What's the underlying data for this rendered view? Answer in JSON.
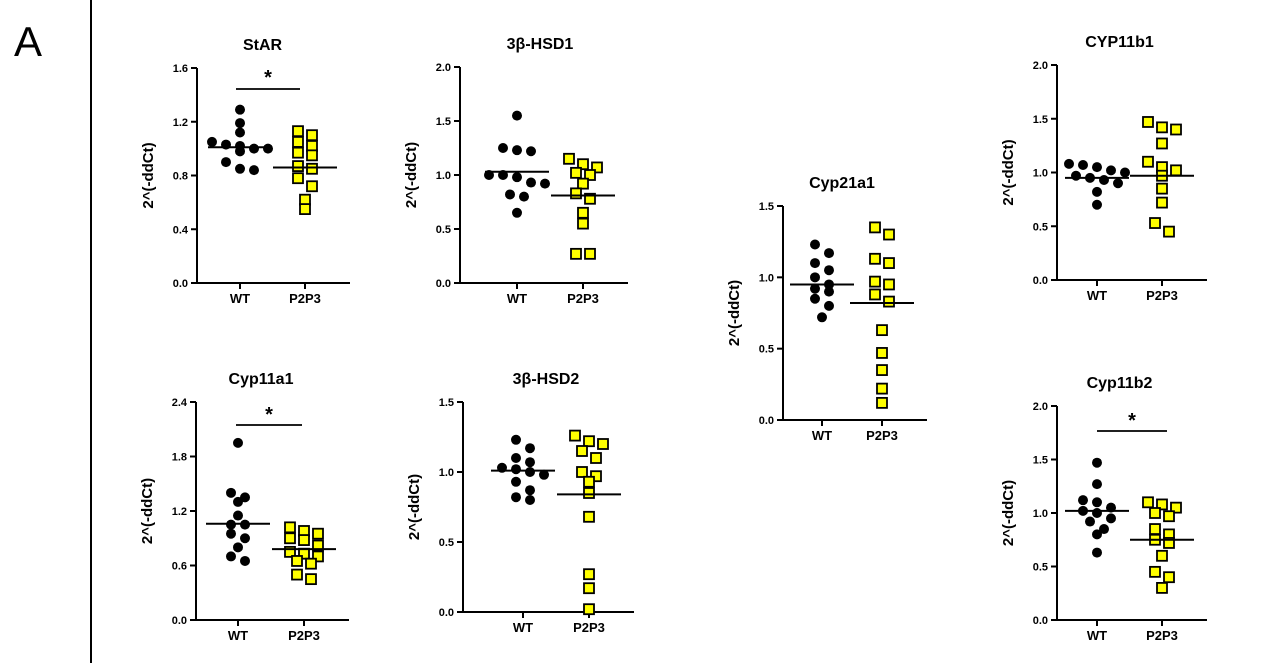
{
  "panel_label": "A",
  "colors": {
    "wt": "#000000",
    "p2p3": "#ffff00",
    "p2p3_edge": "#000000"
  },
  "chart_data": [
    {
      "type": "scatter",
      "title": "StAR",
      "ylabel": "2^(-ddCt)",
      "ylim": [
        0,
        1.6
      ],
      "yticks": [
        "0.0",
        "0.4",
        "0.8",
        "1.2",
        "1.6"
      ],
      "categories": [
        "WT",
        "P2P3"
      ],
      "significance": "*",
      "series": [
        {
          "values": [
            1.29,
            1.19,
            1.12,
            1.05,
            1.03,
            1.02,
            1.0,
            1.0,
            0.98,
            0.9,
            0.85,
            0.84
          ],
          "mean": 1.01
        },
        {
          "values": [
            1.13,
            1.1,
            1.05,
            1.02,
            0.97,
            0.95,
            0.87,
            0.85,
            0.78,
            0.72,
            0.62,
            0.55
          ],
          "mean": 0.86
        }
      ]
    },
    {
      "type": "scatter",
      "title": "3β-HSD1",
      "ylabel": "2^(-ddCt)",
      "ylim": [
        0,
        2.0
      ],
      "yticks": [
        "0.0",
        "0.5",
        "1.0",
        "1.5",
        "2.0"
      ],
      "categories": [
        "WT",
        "P2P3"
      ],
      "significance": "",
      "series": [
        {
          "values": [
            1.55,
            1.25,
            1.23,
            1.22,
            1.0,
            1.0,
            0.98,
            0.93,
            0.92,
            0.82,
            0.8,
            0.65
          ],
          "mean": 1.03
        },
        {
          "values": [
            1.15,
            1.1,
            1.07,
            1.02,
            1.0,
            0.92,
            0.83,
            0.78,
            0.65,
            0.55,
            0.27,
            0.27
          ],
          "mean": 0.81
        }
      ]
    },
    {
      "type": "scatter",
      "title": "Cyp21a1",
      "ylabel": "2^(-ddCt)",
      "ylim": [
        0,
        1.5
      ],
      "yticks": [
        "0.0",
        "0.5",
        "1.0",
        "1.5"
      ],
      "categories": [
        "WT",
        "P2P3"
      ],
      "significance": "",
      "series": [
        {
          "values": [
            1.23,
            1.17,
            1.1,
            1.05,
            1.0,
            0.95,
            0.92,
            0.9,
            0.85,
            0.8,
            0.72
          ],
          "mean": 0.95
        },
        {
          "values": [
            1.35,
            1.3,
            1.13,
            1.1,
            0.97,
            0.95,
            0.88,
            0.83,
            0.63,
            0.47,
            0.35,
            0.22,
            0.12
          ],
          "mean": 0.82
        }
      ]
    },
    {
      "type": "scatter",
      "title": "CYP11b1",
      "ylabel": "2^(-ddCt)",
      "ylim": [
        0,
        2.0
      ],
      "yticks": [
        "0.0",
        "0.5",
        "1.0",
        "1.5",
        "2.0"
      ],
      "categories": [
        "WT",
        "P2P3"
      ],
      "significance": "",
      "series": [
        {
          "values": [
            1.08,
            1.07,
            1.05,
            1.02,
            1.0,
            0.97,
            0.95,
            0.93,
            0.9,
            0.82,
            0.7
          ],
          "mean": 0.95
        },
        {
          "values": [
            1.47,
            1.42,
            1.4,
            1.27,
            1.1,
            1.05,
            1.02,
            0.97,
            0.85,
            0.72,
            0.53,
            0.45
          ],
          "mean": 0.97
        }
      ]
    },
    {
      "type": "scatter",
      "title": "Cyp11a1",
      "ylabel": "2^(-ddCt)",
      "ylim": [
        0,
        2.4
      ],
      "yticks": [
        "0.0",
        "0.6",
        "1.2",
        "1.8",
        "2.4"
      ],
      "categories": [
        "WT",
        "P2P3"
      ],
      "significance": "*",
      "series": [
        {
          "values": [
            1.95,
            1.4,
            1.35,
            1.3,
            1.15,
            1.05,
            1.05,
            0.95,
            0.9,
            0.8,
            0.7,
            0.65
          ],
          "mean": 1.06
        },
        {
          "values": [
            1.02,
            0.98,
            0.95,
            0.9,
            0.88,
            0.82,
            0.75,
            0.73,
            0.7,
            0.65,
            0.62,
            0.5,
            0.45
          ],
          "mean": 0.78
        }
      ]
    },
    {
      "type": "scatter",
      "title": "3β-HSD2",
      "ylabel": "2^(-ddCt)",
      "ylim": [
        0,
        1.5
      ],
      "yticks": [
        "0.0",
        "0.5",
        "1.0",
        "1.5"
      ],
      "categories": [
        "WT",
        "P2P3"
      ],
      "significance": "",
      "series": [
        {
          "values": [
            1.23,
            1.17,
            1.1,
            1.07,
            1.03,
            1.02,
            1.0,
            0.98,
            0.93,
            0.87,
            0.82,
            0.8
          ],
          "mean": 1.01
        },
        {
          "values": [
            1.26,
            1.22,
            1.2,
            1.15,
            1.1,
            1.0,
            0.97,
            0.93,
            0.85,
            0.68,
            0.27,
            0.17,
            0.02
          ],
          "mean": 0.84
        }
      ]
    },
    {
      "type": "scatter",
      "title": "Cyp11b2",
      "ylabel": "2^(-ddCt)",
      "ylim": [
        0,
        2.0
      ],
      "yticks": [
        "0.0",
        "0.5",
        "1.0",
        "1.5",
        "2.0"
      ],
      "categories": [
        "WT",
        "P2P3"
      ],
      "significance": "*",
      "series": [
        {
          "values": [
            1.47,
            1.27,
            1.12,
            1.1,
            1.05,
            1.02,
            1.0,
            0.95,
            0.92,
            0.85,
            0.8,
            0.63
          ],
          "mean": 1.02
        },
        {
          "values": [
            1.1,
            1.08,
            1.05,
            1.0,
            0.97,
            0.85,
            0.8,
            0.75,
            0.72,
            0.6,
            0.45,
            0.4,
            0.3
          ],
          "mean": 0.75
        }
      ]
    }
  ]
}
